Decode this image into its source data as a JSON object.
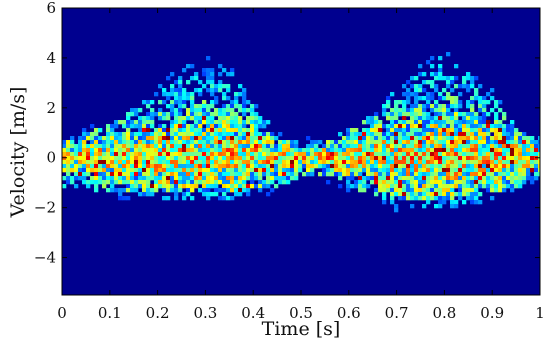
{
  "chart_data": {
    "type": "heatmap",
    "title": "",
    "xlabel": "Time [s]",
    "ylabel": "Velocity [m/s]",
    "xlim": [
      0,
      1
    ],
    "ylim": [
      -5.5,
      6
    ],
    "x_ticks": [
      0,
      0.1,
      0.2,
      0.3,
      0.4,
      0.5,
      0.6,
      0.7,
      0.8,
      0.9,
      1
    ],
    "x_tick_labels": [
      "0",
      "0.1",
      "0.2",
      "0.3",
      "0.4",
      "0.5",
      "0.6",
      "0.7",
      "0.8",
      "0.9",
      "1"
    ],
    "y_ticks": [
      6,
      4,
      2,
      0,
      -2,
      -4
    ],
    "y_tick_labels": [
      "6",
      "4",
      "2",
      "0",
      "−2",
      "−4"
    ],
    "colormap": "jet",
    "grid": false,
    "legend": "none",
    "colors": {
      "background": "#00008f",
      "low": "#0000ff",
      "mid": "#00ffff",
      "high": "#ffff00",
      "peak": "#ff0000"
    },
    "envelope": {
      "t": [
        0.0,
        0.05,
        0.1,
        0.15,
        0.2,
        0.25,
        0.3,
        0.35,
        0.4,
        0.45,
        0.5,
        0.55,
        0.6,
        0.65,
        0.7,
        0.75,
        0.8,
        0.85,
        0.9,
        0.95,
        1.0
      ],
      "v_max": [
        0.8,
        1.2,
        1.6,
        2.2,
        3.2,
        4.0,
        4.3,
        4.0,
        2.5,
        1.2,
        0.6,
        0.9,
        1.4,
        2.0,
        3.0,
        4.0,
        4.6,
        4.0,
        3.0,
        1.5,
        0.8
      ],
      "v_min": [
        -1.4,
        -1.5,
        -1.6,
        -1.6,
        -1.6,
        -1.6,
        -1.6,
        -1.6,
        -1.5,
        -1.4,
        -1.0,
        -0.9,
        -1.4,
        -1.8,
        -2.0,
        -2.0,
        -1.9,
        -1.8,
        -1.6,
        -1.4,
        -1.3
      ]
    }
  }
}
